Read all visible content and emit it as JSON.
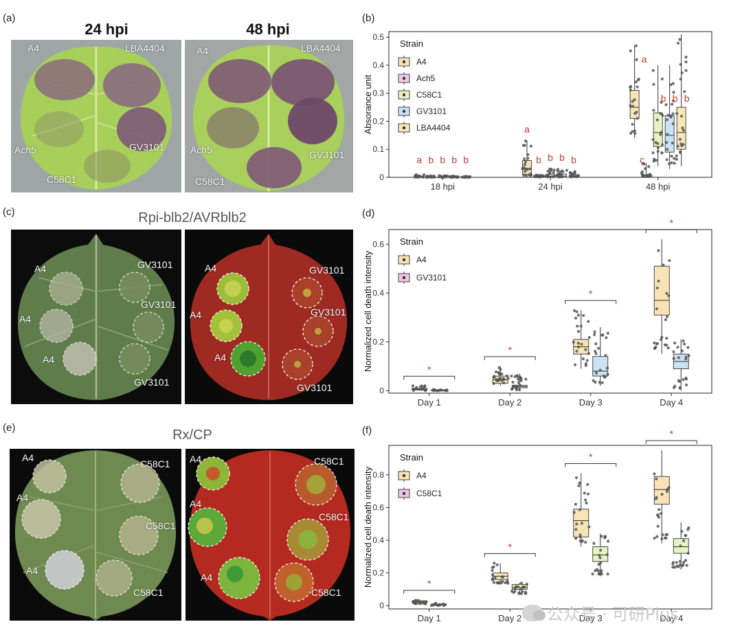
{
  "panels": {
    "a": {
      "letter": "(a)",
      "titles": [
        "24 hpi",
        "48 hpi"
      ],
      "left_labels": [
        "A4",
        "LBA4404",
        "Ach5",
        "GV3101",
        "C58C1"
      ],
      "right_labels": [
        "A4",
        "LBA4404",
        "Ach5",
        "GV3101",
        "C58C1"
      ]
    },
    "c": {
      "letter": "(c)",
      "title": "Rpi-blb2/AVRblb2",
      "left_labels": [
        "A4",
        "A4",
        "A4",
        "GV3101",
        "GV3101",
        "GV3101"
      ],
      "right_labels": [
        "A4",
        "A4",
        "A4",
        "GV3101",
        "GV3101",
        "GV3101"
      ]
    },
    "e": {
      "letter": "(e)",
      "title": "Rx/CP",
      "left_labels": [
        "A4",
        "A4",
        "A4",
        "C58C1",
        "C58C1",
        "C58C1"
      ],
      "right_labels": [
        "A4",
        "A4",
        "A4",
        "C58C1",
        "C58C1",
        "C58C1"
      ]
    }
  },
  "colors": {
    "A4": "#f7e3b5",
    "Ach5": "#f2c8e8",
    "C58C1": "#e8f2c2",
    "GV3101": "#c9e3f3",
    "LBA4404": "#f7e8b4",
    "pink": "#f2c2e4",
    "sig": "#c0392b"
  },
  "chart_data": [
    {
      "id": "b",
      "letter": "(b)",
      "type": "box",
      "ylabel": "Absorance unit",
      "ylim": [
        0,
        0.52
      ],
      "yticks": [
        "0",
        "0.1",
        "0.2",
        "0.3",
        "0.4",
        "0.5"
      ],
      "ytick_values": [
        0,
        0.1,
        0.2,
        0.3,
        0.4,
        0.5
      ],
      "categories": [
        "18 hpi",
        "24 hpi",
        "48 hpi"
      ],
      "legend": {
        "title": "Strain",
        "entries": [
          "A4",
          "Ach5",
          "C58C1",
          "GV3101",
          "LBA4404"
        ]
      },
      "series": [
        {
          "name": "A4",
          "boxes": [
            [
              0.0,
              0.0,
              0.002,
              0.004,
              0.01
            ],
            [
              0.0,
              0.01,
              0.03,
              0.06,
              0.13
            ],
            [
              0.14,
              0.21,
              0.25,
              0.31,
              0.47
            ]
          ]
        },
        {
          "name": "Ach5",
          "boxes": [
            [
              0.0,
              0.0,
              0.001,
              0.002,
              0.006
            ],
            [
              0.0,
              0.0,
              0.001,
              0.003,
              0.008
            ],
            [
              0.0,
              0.002,
              0.006,
              0.01,
              0.05
            ]
          ]
        },
        {
          "name": "C58C1",
          "boxes": [
            [
              0.0,
              0.0,
              0.001,
              0.002,
              0.006
            ],
            [
              0.0,
              0.001,
              0.004,
              0.01,
              0.03
            ],
            [
              0.04,
              0.11,
              0.16,
              0.23,
              0.4
            ]
          ]
        },
        {
          "name": "GV3101",
          "boxes": [
            [
              0.0,
              0.0,
              0.001,
              0.002,
              0.005
            ],
            [
              0.0,
              0.0,
              0.004,
              0.012,
              0.03
            ],
            [
              0.03,
              0.09,
              0.15,
              0.22,
              0.4
            ]
          ]
        },
        {
          "name": "LBA4404",
          "boxes": [
            [
              0.0,
              0.0,
              0.001,
              0.002,
              0.004
            ],
            [
              0.0,
              0.001,
              0.004,
              0.008,
              0.02
            ],
            [
              0.04,
              0.1,
              0.16,
              0.25,
              0.51
            ]
          ]
        }
      ],
      "letters": [
        [
          "a",
          "b",
          "b",
          "b",
          "b"
        ],
        [
          "a",
          "b",
          "b",
          "b",
          "b"
        ],
        [
          "a",
          "c",
          "b",
          "b",
          "b"
        ]
      ]
    },
    {
      "id": "d",
      "letter": "(d)",
      "type": "box",
      "ylabel": "Normalized cell death intensity",
      "ylim": [
        -0.01,
        0.66
      ],
      "yticks": [
        "0",
        "0.2",
        "0.4",
        "0.6"
      ],
      "ytick_values": [
        0,
        0.2,
        0.4,
        0.6
      ],
      "categories": [
        "Day 1",
        "Day 2",
        "Day 3",
        "Day 4"
      ],
      "legend": {
        "title": "Strain",
        "entries": [
          "A4",
          "GV3101"
        ]
      },
      "series": [
        {
          "name": "A4",
          "boxes": [
            [
              0.0,
              0.003,
              0.006,
              0.01,
              0.02
            ],
            [
              0.02,
              0.03,
              0.045,
              0.06,
              0.1
            ],
            [
              0.09,
              0.15,
              0.18,
              0.21,
              0.33
            ],
            [
              0.15,
              0.31,
              0.37,
              0.51,
              0.62
            ]
          ]
        },
        {
          "name": "GV3101",
          "boxes": [
            [
              0.0,
              0.002,
              0.003,
              0.004,
              0.006
            ],
            [
              0.0,
              0.012,
              0.017,
              0.022,
              0.07
            ],
            [
              0.02,
              0.06,
              0.08,
              0.14,
              0.26
            ],
            [
              0.0,
              0.09,
              0.12,
              0.15,
              0.21
            ]
          ]
        }
      ],
      "sig": [
        "*",
        "*",
        "*",
        "*"
      ]
    },
    {
      "id": "f",
      "letter": "(f)",
      "type": "box",
      "ylabel": "Normalized cell death intensity",
      "ylim": [
        -0.02,
        0.98
      ],
      "yticks": [
        "0",
        "0.2",
        "0.4",
        "0.6",
        "0.8"
      ],
      "ytick_values": [
        0,
        0.2,
        0.4,
        0.6,
        0.8
      ],
      "categories": [
        "Day 1",
        "Day 2",
        "Day 3",
        "Day 4"
      ],
      "legend": {
        "title": "Strain",
        "entries": [
          "A4",
          "C58C1"
        ]
      },
      "series": [
        {
          "name": "A4",
          "boxes": [
            [
              0.01,
              0.02,
              0.025,
              0.03,
              0.035
            ],
            [
              0.13,
              0.16,
              0.18,
              0.2,
              0.26
            ],
            [
              0.36,
              0.42,
              0.52,
              0.59,
              0.81
            ],
            [
              0.38,
              0.62,
              0.71,
              0.79,
              0.95
            ]
          ]
        },
        {
          "name": "C58C1",
          "boxes": [
            [
              0.0,
              0.005,
              0.008,
              0.01,
              0.015
            ],
            [
              0.07,
              0.1,
              0.11,
              0.13,
              0.14
            ],
            [
              0.18,
              0.27,
              0.31,
              0.36,
              0.44
            ],
            [
              0.22,
              0.32,
              0.36,
              0.41,
              0.51
            ]
          ]
        }
      ],
      "sig": [
        "*",
        "*",
        "*",
        "*"
      ]
    }
  ],
  "watermark": "公众号 · 可研Plus"
}
